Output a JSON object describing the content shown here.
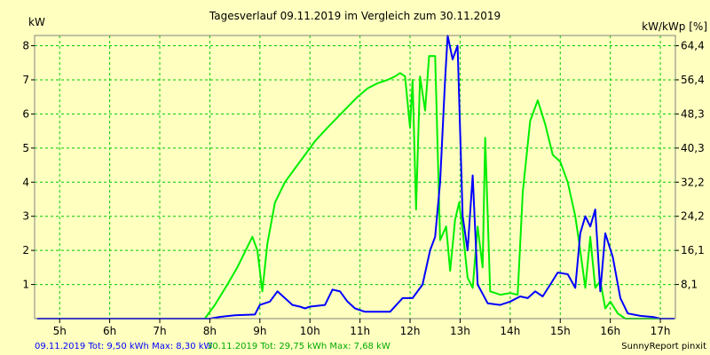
{
  "chart_data": {
    "type": "line",
    "title": "Tagesverlauf 09.11.2019 im Vergleich zum 30.11.2019",
    "ylabel_left": "kW",
    "ylabel_right": "kW/kWp [%]",
    "xlim": [
      4.5,
      17.3
    ],
    "ylim": [
      0,
      8.3
    ],
    "x_ticks": [
      5,
      6,
      7,
      8,
      9,
      10,
      11,
      12,
      13,
      14,
      15,
      16,
      17
    ],
    "x_tick_labels": [
      "5h",
      "6h",
      "7h",
      "8h",
      "9h",
      "10h",
      "11h",
      "12h",
      "13h",
      "14h",
      "15h",
      "16h",
      "17h"
    ],
    "y_ticks_left": [
      1,
      2,
      3,
      4,
      5,
      6,
      7,
      8
    ],
    "y_tick_labels_left": [
      "1",
      "2",
      "3",
      "4",
      "5",
      "6",
      "7",
      "8"
    ],
    "y_tick_labels_right": [
      "8,1",
      "16,1",
      "24,2",
      "32,2",
      "40,3",
      "48,3",
      "56,4",
      "64,4"
    ],
    "grid": true,
    "colors": {
      "background": "#ffffc0",
      "grid": "#00cc00",
      "frame": "#808080",
      "series_0911": "#0000ff",
      "series_3011": "#00ee00",
      "footer_0911": "#0000ff",
      "footer_3011": "#00aa00"
    },
    "series": [
      {
        "name": "09.11.2019",
        "points": [
          [
            4.55,
            0
          ],
          [
            8.0,
            0
          ],
          [
            8.2,
            0.05
          ],
          [
            8.5,
            0.1
          ],
          [
            8.9,
            0.12
          ],
          [
            9.0,
            0.4
          ],
          [
            9.2,
            0.5
          ],
          [
            9.35,
            0.8
          ],
          [
            9.5,
            0.6
          ],
          [
            9.65,
            0.4
          ],
          [
            9.8,
            0.35
          ],
          [
            9.9,
            0.3
          ],
          [
            10.0,
            0.35
          ],
          [
            10.3,
            0.4
          ],
          [
            10.45,
            0.85
          ],
          [
            10.6,
            0.8
          ],
          [
            10.75,
            0.5
          ],
          [
            10.9,
            0.3
          ],
          [
            11.1,
            0.2
          ],
          [
            11.6,
            0.2
          ],
          [
            11.85,
            0.6
          ],
          [
            12.05,
            0.6
          ],
          [
            12.25,
            1.0
          ],
          [
            12.4,
            2.0
          ],
          [
            12.5,
            2.4
          ],
          [
            12.6,
            4.0
          ],
          [
            12.7,
            7.0
          ],
          [
            12.75,
            8.3
          ],
          [
            12.85,
            7.6
          ],
          [
            12.95,
            8.0
          ],
          [
            13.05,
            3.0
          ],
          [
            13.15,
            2.0
          ],
          [
            13.25,
            4.2
          ],
          [
            13.35,
            1.0
          ],
          [
            13.55,
            0.45
          ],
          [
            13.8,
            0.4
          ],
          [
            14.0,
            0.5
          ],
          [
            14.2,
            0.65
          ],
          [
            14.35,
            0.6
          ],
          [
            14.5,
            0.8
          ],
          [
            14.65,
            0.65
          ],
          [
            14.8,
            1.0
          ],
          [
            14.95,
            1.35
          ],
          [
            15.15,
            1.3
          ],
          [
            15.3,
            0.9
          ],
          [
            15.4,
            2.5
          ],
          [
            15.5,
            3.0
          ],
          [
            15.6,
            2.7
          ],
          [
            15.7,
            3.2
          ],
          [
            15.8,
            0.8
          ],
          [
            15.9,
            2.5
          ],
          [
            16.05,
            1.8
          ],
          [
            16.2,
            0.6
          ],
          [
            16.35,
            0.15
          ],
          [
            16.6,
            0.08
          ],
          [
            16.85,
            0.05
          ],
          [
            17.0,
            0
          ],
          [
            17.28,
            0
          ]
        ]
      },
      {
        "name": "30.11.2019",
        "points": [
          [
            4.55,
            0
          ],
          [
            7.9,
            0
          ],
          [
            8.1,
            0.4
          ],
          [
            8.35,
            1.0
          ],
          [
            8.55,
            1.5
          ],
          [
            8.75,
            2.1
          ],
          [
            8.85,
            2.4
          ],
          [
            8.95,
            2.0
          ],
          [
            9.05,
            0.8
          ],
          [
            9.15,
            2.2
          ],
          [
            9.3,
            3.4
          ],
          [
            9.5,
            4.0
          ],
          [
            9.7,
            4.4
          ],
          [
            9.9,
            4.8
          ],
          [
            10.1,
            5.2
          ],
          [
            10.35,
            5.6
          ],
          [
            10.55,
            5.9
          ],
          [
            10.75,
            6.2
          ],
          [
            10.95,
            6.5
          ],
          [
            11.15,
            6.75
          ],
          [
            11.35,
            6.9
          ],
          [
            11.55,
            7.0
          ],
          [
            11.7,
            7.1
          ],
          [
            11.8,
            7.2
          ],
          [
            11.9,
            7.1
          ],
          [
            12.0,
            5.6
          ],
          [
            12.05,
            7.0
          ],
          [
            12.12,
            3.2
          ],
          [
            12.2,
            7.1
          ],
          [
            12.3,
            6.1
          ],
          [
            12.38,
            7.7
          ],
          [
            12.5,
            7.7
          ],
          [
            12.6,
            2.3
          ],
          [
            12.72,
            2.7
          ],
          [
            12.8,
            1.4
          ],
          [
            12.9,
            2.9
          ],
          [
            12.98,
            3.4
          ],
          [
            13.05,
            2.6
          ],
          [
            13.15,
            1.2
          ],
          [
            13.25,
            0.9
          ],
          [
            13.35,
            2.7
          ],
          [
            13.45,
            1.5
          ],
          [
            13.5,
            5.3
          ],
          [
            13.6,
            0.8
          ],
          [
            13.8,
            0.7
          ],
          [
            14.0,
            0.75
          ],
          [
            14.15,
            0.7
          ],
          [
            14.25,
            3.7
          ],
          [
            14.4,
            5.8
          ],
          [
            14.55,
            6.4
          ],
          [
            14.7,
            5.7
          ],
          [
            14.85,
            4.8
          ],
          [
            15.0,
            4.6
          ],
          [
            15.15,
            4.0
          ],
          [
            15.3,
            3.0
          ],
          [
            15.4,
            2.0
          ],
          [
            15.5,
            0.9
          ],
          [
            15.6,
            2.4
          ],
          [
            15.7,
            0.9
          ],
          [
            15.8,
            1.1
          ],
          [
            15.9,
            0.3
          ],
          [
            16.0,
            0.5
          ],
          [
            16.15,
            0.15
          ],
          [
            16.3,
            0
          ],
          [
            17.28,
            0
          ]
        ]
      }
    ]
  },
  "footer": {
    "left_0911": "09.11.2019 Tot: 9,50 kWh Max: 8,30 kW",
    "left_3011": "30.11.2019 Tot: 29,75 kWh Max: 7,68 kW",
    "right": "SunnyReport pinxit"
  }
}
